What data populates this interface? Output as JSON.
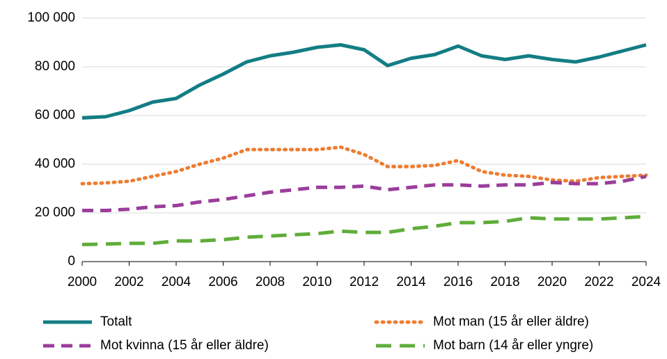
{
  "chart_data": {
    "type": "line",
    "x": [
      2000,
      2001,
      2002,
      2003,
      2004,
      2005,
      2006,
      2007,
      2008,
      2009,
      2010,
      2011,
      2012,
      2013,
      2014,
      2015,
      2016,
      2017,
      2018,
      2019,
      2020,
      2021,
      2022,
      2023,
      2024
    ],
    "series": [
      {
        "name": "Totalt",
        "color": "#137d84",
        "style": "solid",
        "values": [
          59000,
          59500,
          62000,
          65500,
          67000,
          72500,
          77000,
          82000,
          84500,
          86000,
          88000,
          89000,
          87000,
          80500,
          83500,
          85000,
          88500,
          84500,
          83000,
          84500,
          83000,
          82000,
          84000,
          86500,
          89000
        ]
      },
      {
        "name": "Mot man (15 år eller äldre)",
        "color": "#ed7d31",
        "style": "dotted",
        "values": [
          32000,
          32300,
          33000,
          35000,
          37000,
          40000,
          42500,
          46000,
          46000,
          46000,
          46000,
          47000,
          44000,
          39000,
          39000,
          39500,
          41500,
          37000,
          35500,
          35000,
          33500,
          33000,
          34500,
          35000,
          35500
        ]
      },
      {
        "name": "Mot kvinna (15 år eller äldre)",
        "color": "#9b3d9b",
        "style": "dashed",
        "values": [
          21000,
          21000,
          21500,
          22500,
          23000,
          24500,
          25500,
          27000,
          28500,
          29500,
          30500,
          30500,
          31000,
          29500,
          30500,
          31500,
          31500,
          31000,
          31500,
          31500,
          32500,
          32000,
          32000,
          33000,
          35000
        ]
      },
      {
        "name": "Mot barn (14 år eller yngre)",
        "color": "#5fad3a",
        "style": "longdash",
        "values": [
          7000,
          7200,
          7500,
          7500,
          8500,
          8500,
          9000,
          10000,
          10500,
          11000,
          11500,
          12500,
          12000,
          12000,
          13500,
          14500,
          16000,
          16000,
          16500,
          18000,
          17500,
          17500,
          17500,
          18000,
          18500
        ]
      }
    ],
    "xlim": [
      2000,
      2024
    ],
    "xticks": [
      2000,
      2002,
      2004,
      2006,
      2008,
      2010,
      2012,
      2014,
      2016,
      2018,
      2020,
      2022,
      2024
    ],
    "ylim": [
      0,
      100000
    ],
    "yticks": [
      0,
      {
        "value": 20000,
        "label": "20 000"
      },
      {
        "value": 40000,
        "label": "40 000"
      },
      {
        "value": 60000,
        "label": "60 000"
      },
      {
        "value": 80000,
        "label": "80 000"
      },
      {
        "value": 100000,
        "label": "100 000"
      }
    ],
    "grid": true,
    "legend": "bottom"
  }
}
